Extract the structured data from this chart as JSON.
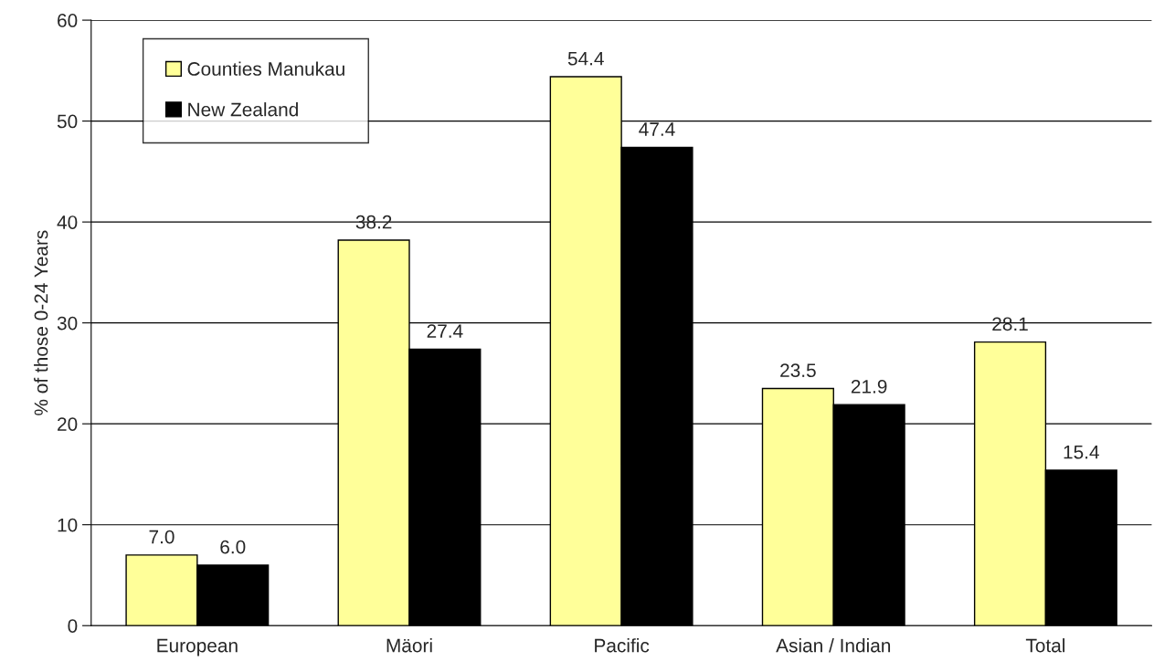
{
  "chart_data": {
    "type": "bar",
    "ylabel": "% of those 0-24 Years",
    "categories": [
      "European",
      "Mäori",
      "Pacific",
      "Asian / Indian",
      "Total"
    ],
    "series": [
      {
        "name": "Counties Manukau",
        "color": "#ffff99",
        "values": [
          7.0,
          38.2,
          54.4,
          23.5,
          28.1
        ],
        "value_labels": [
          "7.0",
          "38.2",
          "54.4",
          "23.5",
          "28.1"
        ]
      },
      {
        "name": "New Zealand",
        "color": "#000000",
        "values": [
          6.0,
          27.4,
          47.4,
          21.9,
          15.4
        ],
        "value_labels": [
          "6.0",
          "27.4",
          "47.4",
          "21.9",
          "15.4"
        ]
      }
    ],
    "ylim": [
      0,
      60
    ],
    "yticks": [
      0,
      10,
      20,
      30,
      40,
      50,
      60
    ],
    "grid": "y",
    "legend": "top left"
  }
}
